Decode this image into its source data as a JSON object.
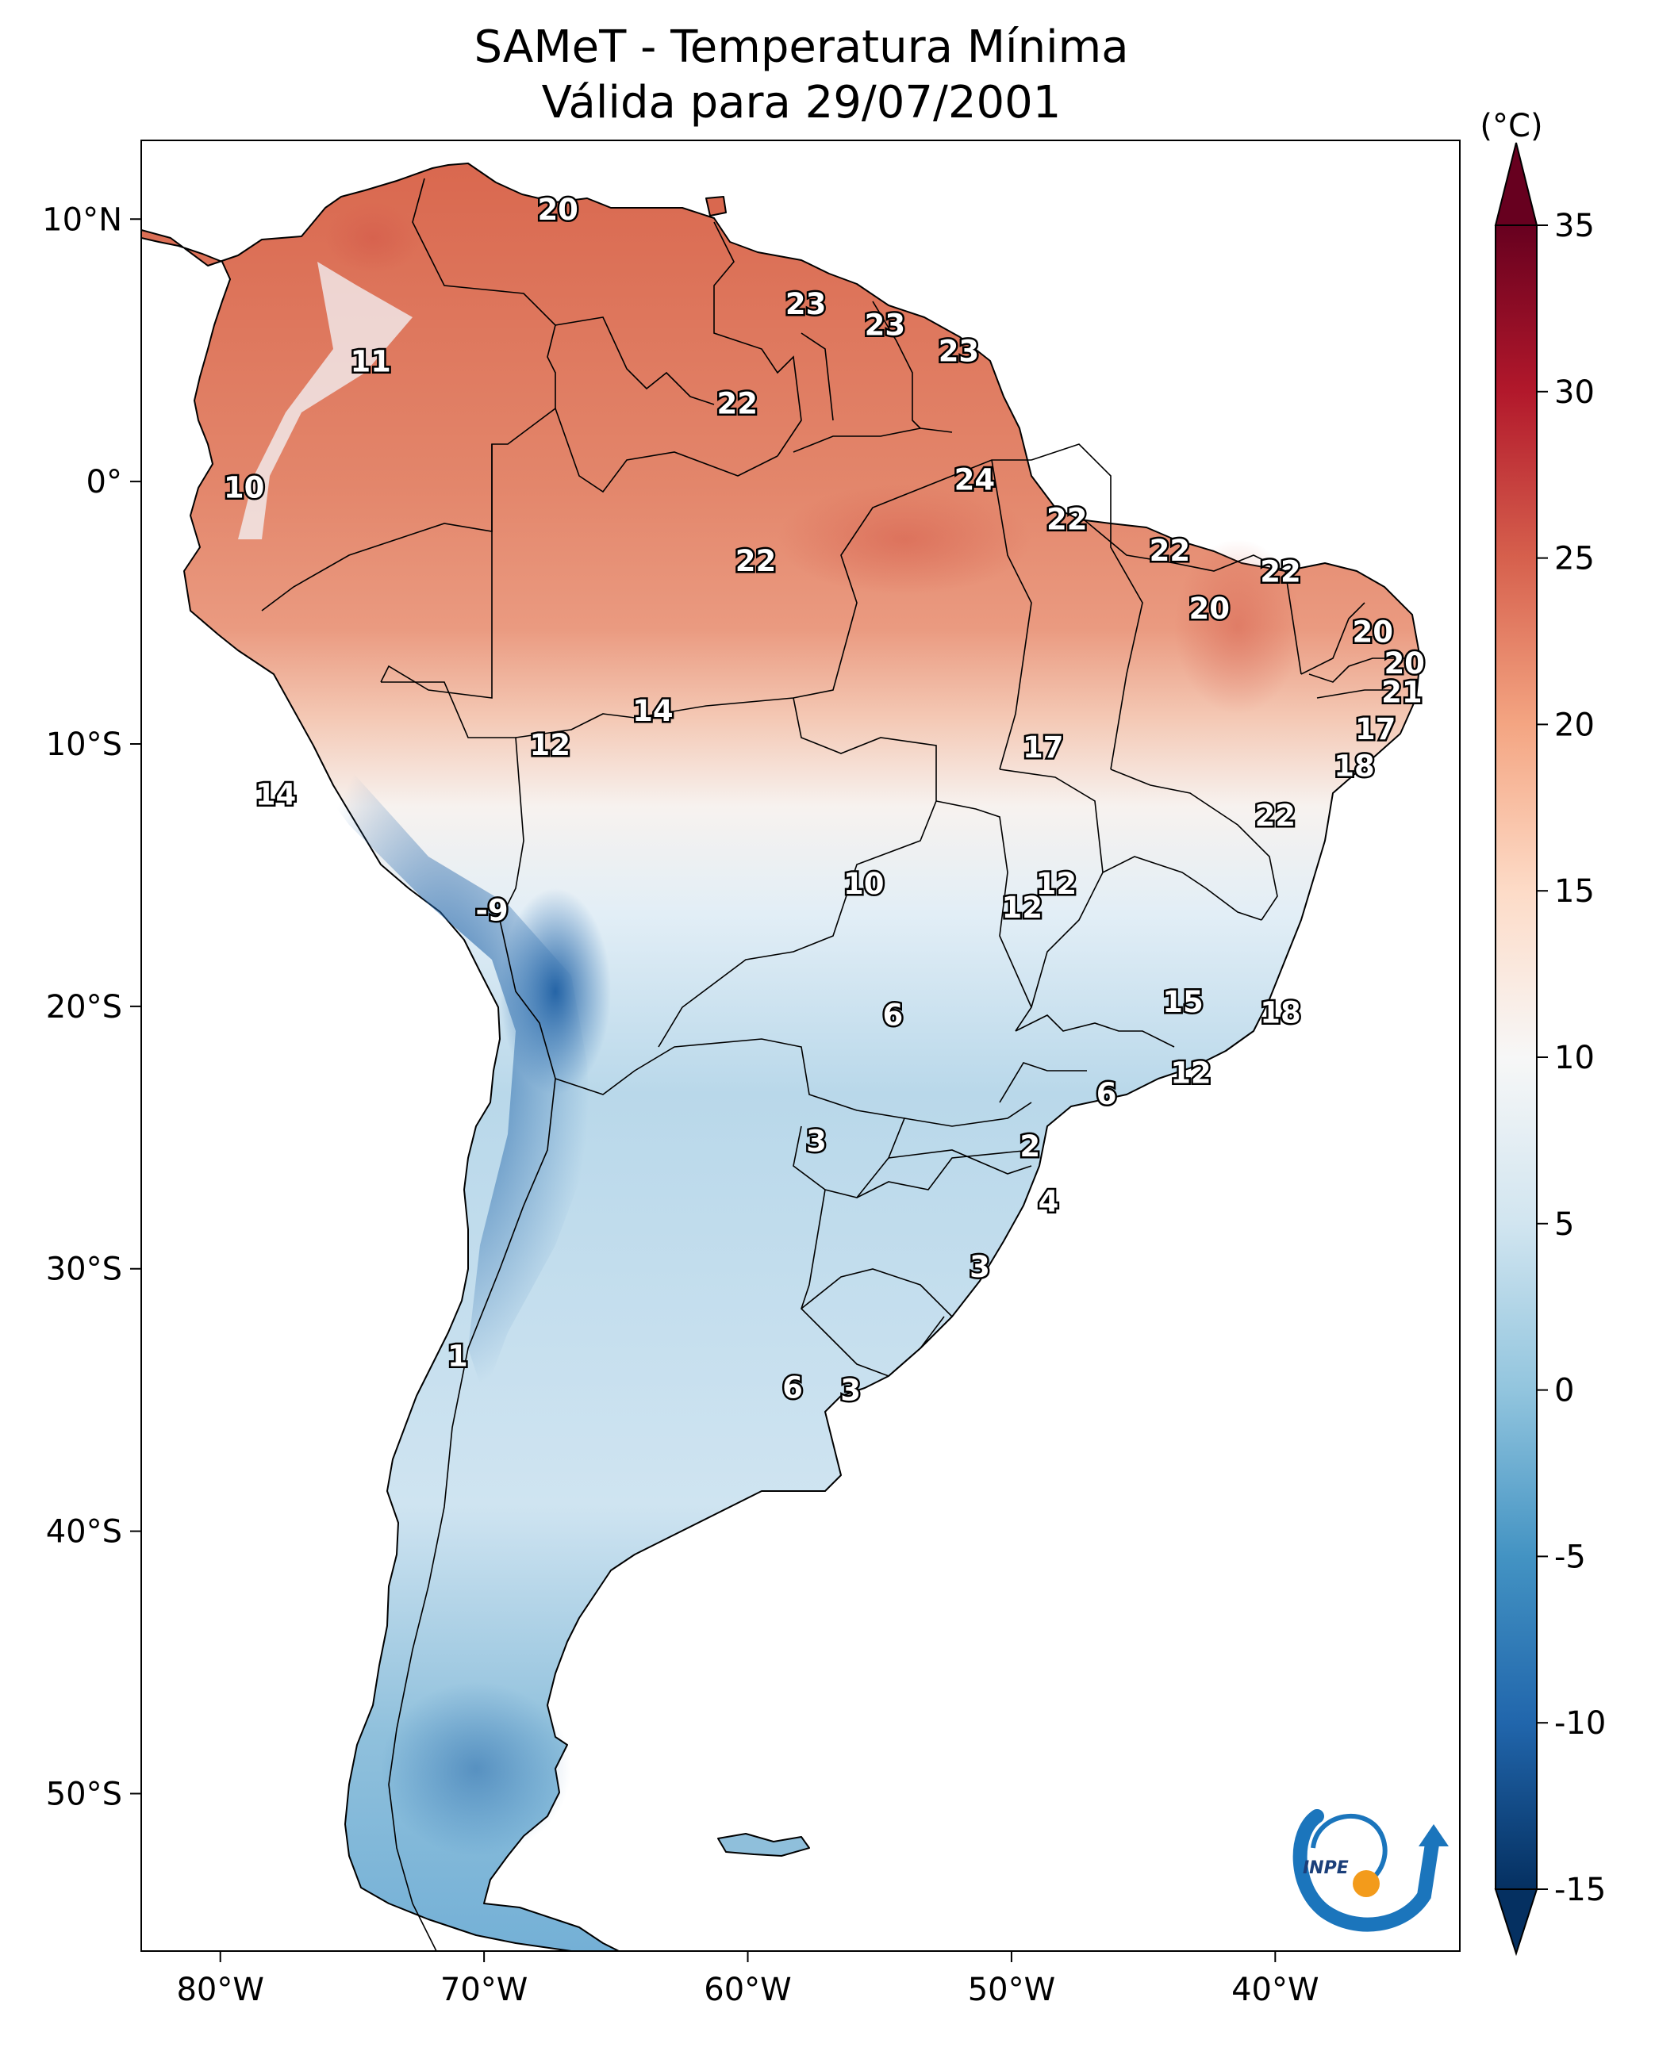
{
  "chart_data": {
    "type": "heatmap",
    "title": "SAMeT - Temperatura Mínima",
    "subtitle": "Válida para 29/07/2001",
    "variable": "Temperatura Mínima",
    "units": "(°C)",
    "xlim": [
      -83,
      -33
    ],
    "ylim": [
      -56,
      13
    ],
    "x_ticks": [
      {
        "value": -80,
        "label": "80°W"
      },
      {
        "value": -70,
        "label": "70°W"
      },
      {
        "value": -60,
        "label": "60°W"
      },
      {
        "value": -50,
        "label": "50°W"
      },
      {
        "value": -40,
        "label": "40°W"
      }
    ],
    "y_ticks": [
      {
        "value": 10,
        "label": "10°N"
      },
      {
        "value": 0,
        "label": "0°"
      },
      {
        "value": -10,
        "label": "10°S"
      },
      {
        "value": -20,
        "label": "20°S"
      },
      {
        "value": -30,
        "label": "30°S"
      },
      {
        "value": -40,
        "label": "40°S"
      },
      {
        "value": -50,
        "label": "50°S"
      }
    ],
    "colorbar": {
      "label": "(°C)",
      "range": [
        -15,
        35
      ],
      "extend": "both",
      "cmap": "RdBu_r",
      "stops": [
        {
          "value": -15,
          "color": "#053061"
        },
        {
          "value": -10,
          "color": "#2166ac"
        },
        {
          "value": -5,
          "color": "#4393c3"
        },
        {
          "value": 0,
          "color": "#92c5de"
        },
        {
          "value": 5,
          "color": "#d1e5f0"
        },
        {
          "value": 10,
          "color": "#f7f7f7"
        },
        {
          "value": 15,
          "color": "#fddbc7"
        },
        {
          "value": 20,
          "color": "#f4a582"
        },
        {
          "value": 25,
          "color": "#d6604d"
        },
        {
          "value": 30,
          "color": "#b2182b"
        },
        {
          "value": 35,
          "color": "#67001f"
        }
      ],
      "ticks": [
        {
          "value": 35,
          "label": "35"
        },
        {
          "value": 30,
          "label": "30"
        },
        {
          "value": 25,
          "label": "25"
        },
        {
          "value": 20,
          "label": "20"
        },
        {
          "value": 15,
          "label": "15"
        },
        {
          "value": 10,
          "label": "10"
        },
        {
          "value": 5,
          "label": "5"
        },
        {
          "value": 0,
          "label": "0"
        },
        {
          "value": -5,
          "label": "-5"
        },
        {
          "value": -10,
          "label": "-10"
        },
        {
          "value": -15,
          "label": "-15"
        }
      ]
    },
    "point_labels": [
      {
        "lon": -67.2,
        "lat": 10.3,
        "value": 20,
        "text": "20"
      },
      {
        "lon": -74.3,
        "lat": 4.5,
        "value": 11,
        "text": "11"
      },
      {
        "lon": -57.8,
        "lat": 6.7,
        "value": 23,
        "text": "23"
      },
      {
        "lon": -54.8,
        "lat": 5.9,
        "value": 23,
        "text": "23"
      },
      {
        "lon": -52.0,
        "lat": 4.9,
        "value": 23,
        "text": "23"
      },
      {
        "lon": -60.4,
        "lat": 2.9,
        "value": 22,
        "text": "22"
      },
      {
        "lon": -79.1,
        "lat": -0.3,
        "value": 10,
        "text": "10"
      },
      {
        "lon": -51.4,
        "lat": 0.0,
        "value": 24,
        "text": "24"
      },
      {
        "lon": -47.9,
        "lat": -1.5,
        "value": 22,
        "text": "22"
      },
      {
        "lon": -59.7,
        "lat": -3.1,
        "value": 22,
        "text": "22"
      },
      {
        "lon": -44.0,
        "lat": -2.7,
        "value": 22,
        "text": "22"
      },
      {
        "lon": -39.8,
        "lat": -3.5,
        "value": 22,
        "text": "22"
      },
      {
        "lon": -42.5,
        "lat": -4.9,
        "value": 20,
        "text": "20"
      },
      {
        "lon": -36.3,
        "lat": -5.8,
        "value": 20,
        "text": "20"
      },
      {
        "lon": -35.1,
        "lat": -7.0,
        "value": 20,
        "text": "20"
      },
      {
        "lon": -35.2,
        "lat": -8.1,
        "value": 21,
        "text": "21"
      },
      {
        "lon": -63.6,
        "lat": -8.8,
        "value": 14,
        "text": "14"
      },
      {
        "lon": -67.5,
        "lat": -10.1,
        "value": 12,
        "text": "12"
      },
      {
        "lon": -36.2,
        "lat": -9.5,
        "value": 17,
        "text": "17"
      },
      {
        "lon": -48.8,
        "lat": -10.2,
        "value": 17,
        "text": "17"
      },
      {
        "lon": -37.0,
        "lat": -10.9,
        "value": 18,
        "text": "18"
      },
      {
        "lon": -77.9,
        "lat": -12.0,
        "value": 14,
        "text": "14"
      },
      {
        "lon": -40.0,
        "lat": -12.8,
        "value": 22,
        "text": "22"
      },
      {
        "lon": -55.6,
        "lat": -15.4,
        "value": 10,
        "text": "10"
      },
      {
        "lon": -48.3,
        "lat": -15.4,
        "value": 12,
        "text": "12"
      },
      {
        "lon": -49.6,
        "lat": -16.3,
        "value": 12,
        "text": "12"
      },
      {
        "lon": -69.7,
        "lat": -16.4,
        "value": -9,
        "text": "-9"
      },
      {
        "lon": -43.5,
        "lat": -19.9,
        "value": 15,
        "text": "15"
      },
      {
        "lon": -39.8,
        "lat": -20.3,
        "value": 18,
        "text": "18"
      },
      {
        "lon": -54.5,
        "lat": -20.4,
        "value": 6,
        "text": "6"
      },
      {
        "lon": -43.2,
        "lat": -22.6,
        "value": 12,
        "text": "12"
      },
      {
        "lon": -46.4,
        "lat": -23.4,
        "value": 6,
        "text": "6"
      },
      {
        "lon": -57.4,
        "lat": -25.2,
        "value": 3,
        "text": "3"
      },
      {
        "lon": -49.3,
        "lat": -25.4,
        "value": 2,
        "text": "2"
      },
      {
        "lon": -48.6,
        "lat": -27.5,
        "value": 4,
        "text": "4"
      },
      {
        "lon": -51.2,
        "lat": -30.0,
        "value": 3,
        "text": "3"
      },
      {
        "lon": -71.0,
        "lat": -33.4,
        "value": 1,
        "text": "1"
      },
      {
        "lon": -58.3,
        "lat": -34.6,
        "value": 6,
        "text": "6"
      },
      {
        "lon": -56.1,
        "lat": -34.7,
        "value": 3,
        "text": "3"
      }
    ]
  },
  "logo": {
    "name": "INPE",
    "text": "INPE"
  }
}
